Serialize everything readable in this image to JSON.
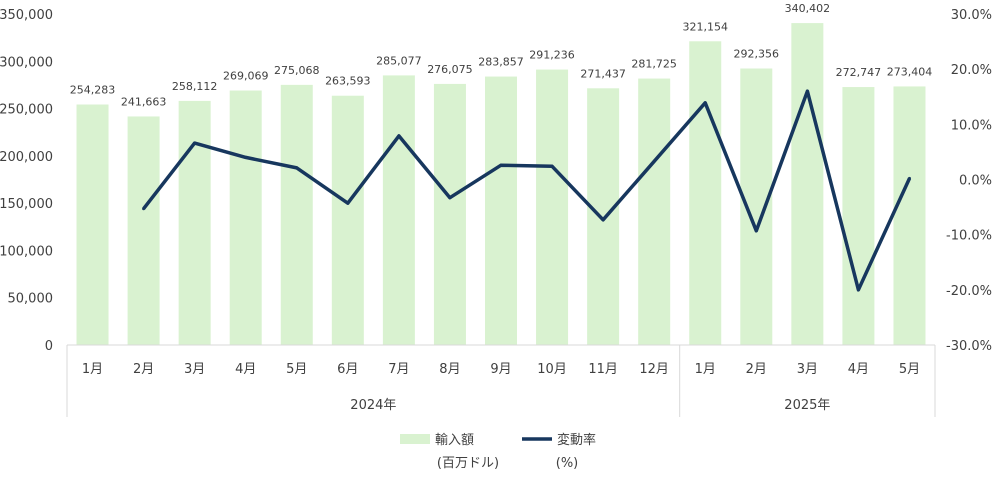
{
  "chart_data": {
    "type": "bar",
    "categories": [
      "1月",
      "2月",
      "3月",
      "4月",
      "5月",
      "6月",
      "7月",
      "8月",
      "9月",
      "10月",
      "11月",
      "12月",
      "1月",
      "2月",
      "3月",
      "4月",
      "5月"
    ],
    "groups": [
      {
        "label": "2024年",
        "count": 12
      },
      {
        "label": "2025年",
        "count": 5
      }
    ],
    "series": [
      {
        "name": "輸入額",
        "name_sub": "(百万ドル)",
        "type": "bar",
        "axis": "left",
        "color": "#d9f2d0",
        "values": [
          254283,
          241663,
          258112,
          269069,
          275068,
          263593,
          285077,
          276075,
          283857,
          291236,
          271437,
          281725,
          321154,
          292356,
          340402,
          272747,
          273404
        ],
        "labels": [
          "254,283",
          "241,663",
          "258,112",
          "269,069",
          "275,068",
          "263,593",
          "285,077",
          "276,075",
          "283,857",
          "291,236",
          "271,437",
          "281,725",
          "321,154",
          "292,356",
          "340,402",
          "272,747",
          "273,404"
        ]
      },
      {
        "name": "変動率",
        "name_sub": "(%)",
        "type": "line",
        "axis": "right",
        "color": "#17375e",
        "values": [
          null,
          -5.3,
          6.6,
          4.0,
          2.1,
          -4.3,
          7.9,
          -3.3,
          2.6,
          2.4,
          -7.3,
          3.3,
          13.9,
          -9.3,
          16.0,
          -20.0,
          0.2
        ]
      }
    ],
    "y_left": {
      "ylim": [
        0,
        350000
      ],
      "ticks": [
        0,
        50000,
        100000,
        150000,
        200000,
        250000,
        300000,
        350000
      ],
      "tick_labels": [
        "0",
        "50,000",
        "100,000",
        "150,000",
        "200,000",
        "250,000",
        "300,000",
        "350,000"
      ]
    },
    "y_right": {
      "ylim": [
        -30,
        30
      ],
      "ticks": [
        -30,
        -20,
        -10,
        0,
        10,
        20,
        30
      ],
      "tick_labels": [
        "-30.0%",
        "-20.0%",
        "-10.0%",
        "0.0%",
        "10.0%",
        "20.0%",
        "30.0%"
      ]
    },
    "grid": false,
    "legend_position": "bottom"
  }
}
